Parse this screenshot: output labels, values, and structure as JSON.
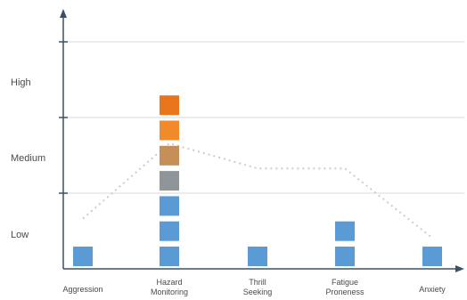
{
  "chart_data": {
    "type": "bar",
    "categories": [
      {
        "lines": [
          "Aggression"
        ]
      },
      {
        "lines": [
          "Hazard",
          "Monitoring"
        ]
      },
      {
        "lines": [
          "Thrill",
          "Seeking"
        ]
      },
      {
        "lines": [
          "Fatigue",
          "Proneness"
        ]
      },
      {
        "lines": [
          "Anxiety"
        ]
      }
    ],
    "y_levels": [
      "Low",
      "Medium",
      "High"
    ],
    "ylim": [
      0,
      10
    ],
    "values": [
      1,
      7,
      1,
      2,
      1
    ],
    "line_values": [
      2.6,
      6.5,
      5.2,
      5.2,
      1.6
    ],
    "grid": true,
    "colors": {
      "blue": "#5b9bd5",
      "orange": "#f08a2a",
      "axis": "#3b5165",
      "grid": "#d6dbe0",
      "line": "#c9cdd1"
    }
  }
}
